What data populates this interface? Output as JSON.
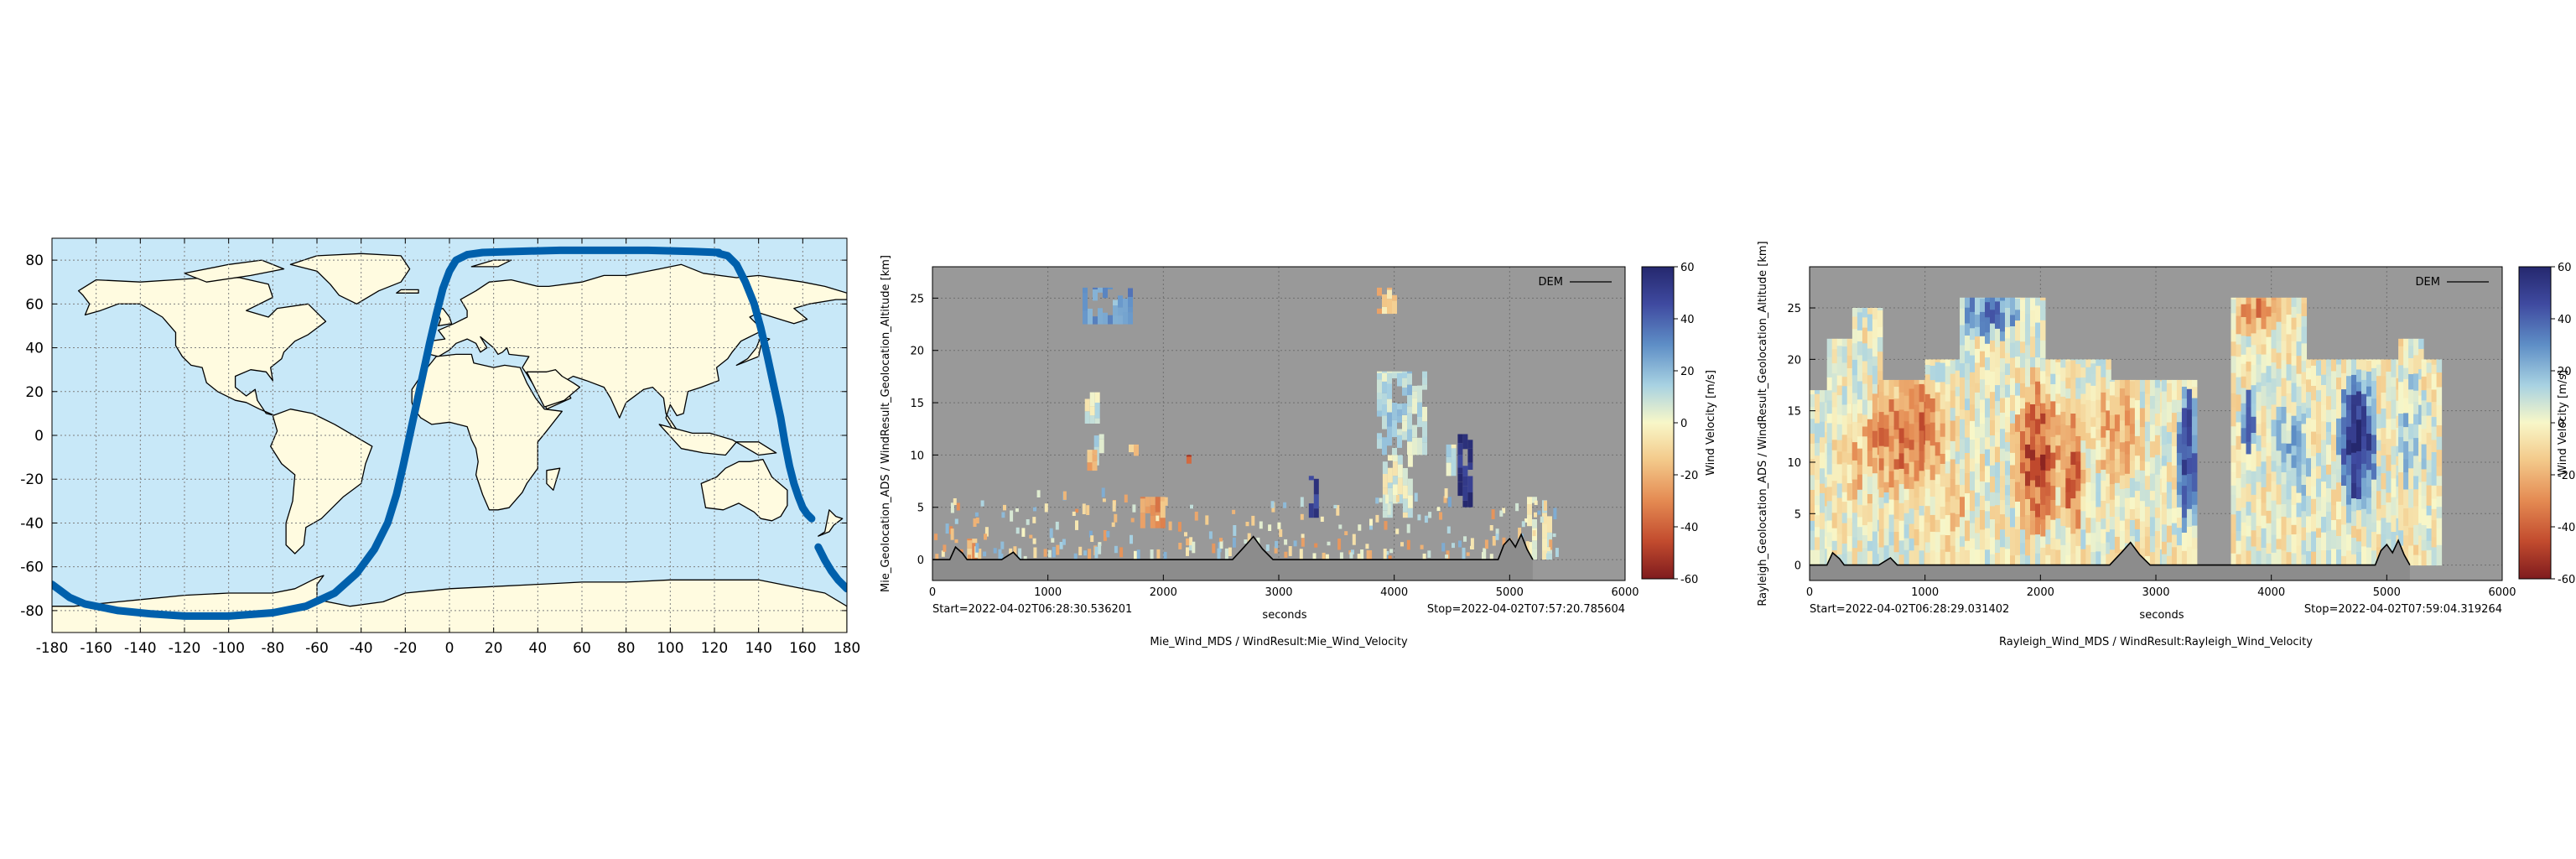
{
  "chart_data": [
    {
      "type": "scatter",
      "description_role": "orbit-ground-track-map",
      "xlim": [
        -180,
        180
      ],
      "ylim": [
        -90,
        90
      ],
      "x_ticks": [
        -180,
        -160,
        -140,
        -120,
        -100,
        -80,
        -60,
        -40,
        -20,
        0,
        20,
        40,
        60,
        80,
        100,
        120,
        140,
        160,
        180
      ],
      "y_ticks": [
        -80,
        -60,
        -40,
        -20,
        0,
        20,
        40,
        60,
        80
      ],
      "grid": true,
      "colors": {
        "ocean": "#c8e8f8",
        "land": "#fffbe0",
        "coast": "#000000",
        "track": "#0060ac",
        "grid": "#7f7f7f"
      },
      "series": [
        {
          "x": [
            -180,
            -172,
            -165,
            -150,
            -135,
            -120,
            -100,
            -80,
            -65,
            -52,
            -42,
            -34,
            -28,
            -24,
            -21,
            -18,
            -15,
            -12,
            -9,
            -6,
            -3,
            0,
            3,
            8,
            15,
            30,
            50,
            70,
            90,
            110,
            122
          ],
          "y": [
            -68,
            -74,
            -77,
            -80,
            -81.5,
            -82.5,
            -82.5,
            -81,
            -78,
            -72,
            -63,
            -52,
            -40,
            -27,
            -14,
            0,
            14,
            28,
            42,
            55,
            67,
            75,
            80,
            82.5,
            83.5,
            84,
            84.5,
            84.5,
            84.5,
            84,
            83.5
          ]
        },
        {
          "x": [
            122,
            126,
            130,
            134,
            138,
            141,
            144,
            147,
            150,
            152,
            154,
            156,
            158,
            160,
            162,
            164
          ],
          "y": [
            83,
            82,
            78,
            70,
            60,
            49,
            36,
            22,
            8,
            -4,
            -14,
            -22,
            -28,
            -33,
            -36,
            -38
          ]
        },
        {
          "x": [
            167,
            170,
            173,
            176,
            180
          ],
          "y": [
            -51,
            -57,
            -62,
            -66,
            -70
          ]
        }
      ]
    },
    {
      "type": "heatmap",
      "ylabel": "Mie_Geolocation_ADS / WindResult_Geolocation_Altitude [km]",
      "xlabel": "seconds",
      "caption": "Mie_Wind_MDS / WindResult:Mie_Wind_Velocity",
      "start_label": "Start=2022-04-02T06:28:30.536201",
      "stop_label": "Stop=2022-04-02T07:57:20.785604",
      "xlim": [
        0,
        6000
      ],
      "ylim": [
        -2,
        28
      ],
      "x_ticks": [
        0,
        1000,
        2000,
        3000,
        4000,
        5000,
        6000
      ],
      "y_ticks": [
        0,
        5,
        10,
        15,
        20,
        25
      ],
      "legend": {
        "label": "DEM",
        "position": "top-right"
      },
      "colorbar": {
        "label": "Wind Velocity [m/s]",
        "range": [
          -60,
          60
        ],
        "ticks": [
          60,
          40,
          20,
          0,
          -20,
          -40,
          -60
        ]
      },
      "background": "#999999",
      "dem": {
        "x": [
          0,
          150,
          200,
          260,
          300,
          600,
          700,
          760,
          900,
          2600,
          2700,
          2780,
          2860,
          2950,
          3000,
          4900,
          4950,
          5000,
          5050,
          5100,
          5150,
          5200
        ],
        "y": [
          0,
          0,
          1.2,
          0.6,
          0,
          0,
          0.7,
          0,
          0,
          0,
          1.2,
          2.2,
          1.0,
          0,
          0,
          0,
          1.4,
          2.0,
          1.2,
          2.4,
          1.0,
          0
        ]
      },
      "regions": [
        {
          "x": [
            1300,
            1720
          ],
          "y": [
            22.5,
            26
          ],
          "value": 25
        },
        {
          "x": [
            1320,
            1450
          ],
          "y": [
            13,
            16
          ],
          "value": 3
        },
        {
          "x": [
            1400,
            1460
          ],
          "y": [
            9,
            12
          ],
          "value": 8
        },
        {
          "x": [
            1340,
            1400
          ],
          "y": [
            8.5,
            10.5
          ],
          "value": -18
        },
        {
          "x": [
            1700,
            1760
          ],
          "y": [
            9,
            11
          ],
          "value": -15
        },
        {
          "x": [
            2200,
            2240
          ],
          "y": [
            7.5,
            10
          ],
          "value": -48
        },
        {
          "x": [
            1800,
            2000
          ],
          "y": [
            3,
            6
          ],
          "value": -25
        },
        {
          "x": [
            300,
            360
          ],
          "y": [
            0,
            2
          ],
          "value": -20
        },
        {
          "x": [
            3260,
            3320
          ],
          "y": [
            4,
            8
          ],
          "value": 50
        },
        {
          "x": [
            3850,
            4250
          ],
          "y": [
            10,
            18
          ],
          "value": 12
        },
        {
          "x": [
            3850,
            4000
          ],
          "y": [
            23.5,
            26
          ],
          "value": -14
        },
        {
          "x": [
            3900,
            4150
          ],
          "y": [
            4,
            10
          ],
          "value": 2
        },
        {
          "x": [
            4550,
            4650
          ],
          "y": [
            5,
            12
          ],
          "value": 55
        },
        {
          "x": [
            4450,
            4500
          ],
          "y": [
            8,
            11
          ],
          "value": 8
        },
        {
          "x": [
            5150,
            5350
          ],
          "y": [
            0,
            6
          ],
          "value": 4
        }
      ],
      "scatter": {
        "x": [
          0,
          5400
        ],
        "y": [
          0,
          6
        ],
        "value_range": [
          -30,
          25
        ],
        "count": 240
      }
    },
    {
      "type": "heatmap",
      "ylabel": "Rayleigh_Geolocation_ADS / WindResult_Geolocation_Altitude [km]",
      "xlabel": "seconds",
      "caption": "Rayleigh_Wind_MDS / WindResult:Rayleigh_Wind_Velocity",
      "start_label": "Start=2022-04-02T06:28:29.031402",
      "stop_label": "Stop=2022-04-02T07:59:04.319264",
      "xlim": [
        0,
        6000
      ],
      "ylim": [
        -1.5,
        29
      ],
      "x_ticks": [
        0,
        1000,
        2000,
        3000,
        4000,
        5000,
        6000
      ],
      "y_ticks": [
        0,
        5,
        10,
        15,
        20,
        25
      ],
      "legend": {
        "label": "DEM",
        "position": "top-right"
      },
      "colorbar": {
        "label": "Wind Velocity [m/s]",
        "range": [
          -60,
          60
        ],
        "ticks": [
          60,
          40,
          20,
          0,
          -20,
          -40,
          -60
        ]
      },
      "background": "#999999",
      "dem": {
        "x": [
          0,
          150,
          200,
          260,
          300,
          600,
          700,
          760,
          900,
          2600,
          2700,
          2780,
          2860,
          2950,
          3000,
          4900,
          4950,
          5000,
          5050,
          5100,
          5150,
          5200
        ],
        "y": [
          0,
          0,
          1.2,
          0.6,
          0,
          0,
          0.7,
          0,
          0,
          0,
          1.2,
          2.2,
          1.0,
          0,
          0,
          0,
          1.4,
          2.0,
          1.2,
          2.4,
          1.0,
          0
        ]
      },
      "coverage": [
        {
          "x": [
            0,
            150
          ],
          "top": 17
        },
        {
          "x": [
            150,
            370
          ],
          "top": 22
        },
        {
          "x": [
            370,
            600
          ],
          "top": 25
        },
        {
          "x": [
            600,
            1000
          ],
          "top": 18
        },
        {
          "x": [
            1000,
            1300
          ],
          "top": 20
        },
        {
          "x": [
            1300,
            2000
          ],
          "top": 26
        },
        {
          "x": [
            2000,
            2600
          ],
          "top": 20
        },
        {
          "x": [
            2600,
            3050
          ],
          "top": 18
        },
        {
          "x": [
            3050,
            3350
          ],
          "top": 18
        },
        {
          "x": [
            3650,
            4300
          ],
          "top": 26
        },
        {
          "x": [
            4300,
            4950
          ],
          "top": 20
        },
        {
          "x": [
            4950,
            5100
          ],
          "top": 20
        },
        {
          "x": [
            5100,
            5300
          ],
          "top": 22
        },
        {
          "x": [
            5300,
            5450
          ],
          "top": 20
        }
      ],
      "gap": {
        "x": [
          3350,
          3650
        ]
      },
      "blobs": [
        {
          "x": 850,
          "y": 12,
          "rx": 400,
          "ry": 7,
          "value": -38
        },
        {
          "x": 1550,
          "y": 24,
          "rx": 300,
          "ry": 3,
          "value": 35
        },
        {
          "x": 1950,
          "y": 10,
          "rx": 250,
          "ry": 9,
          "value": -45
        },
        {
          "x": 2250,
          "y": 8,
          "rx": 120,
          "ry": 8,
          "value": -40
        },
        {
          "x": 2650,
          "y": 12,
          "rx": 250,
          "ry": 6,
          "value": -22
        },
        {
          "x": 3250,
          "y": 10,
          "rx": 120,
          "ry": 8,
          "value": 50
        },
        {
          "x": 3780,
          "y": 13,
          "rx": 90,
          "ry": 4,
          "value": 45
        },
        {
          "x": 3900,
          "y": 24,
          "rx": 300,
          "ry": 3,
          "value": -28
        },
        {
          "x": 4150,
          "y": 10,
          "rx": 200,
          "ry": 6,
          "value": 20
        },
        {
          "x": 4720,
          "y": 11,
          "rx": 200,
          "ry": 8,
          "value": 58
        },
        {
          "x": 5200,
          "y": 12,
          "rx": 150,
          "ry": 7,
          "value": 15
        },
        {
          "x": 1200,
          "y": 5,
          "rx": 200,
          "ry": 4,
          "value": -18
        },
        {
          "x": 400,
          "y": 10,
          "rx": 250,
          "ry": 6,
          "value": -15
        }
      ]
    }
  ]
}
